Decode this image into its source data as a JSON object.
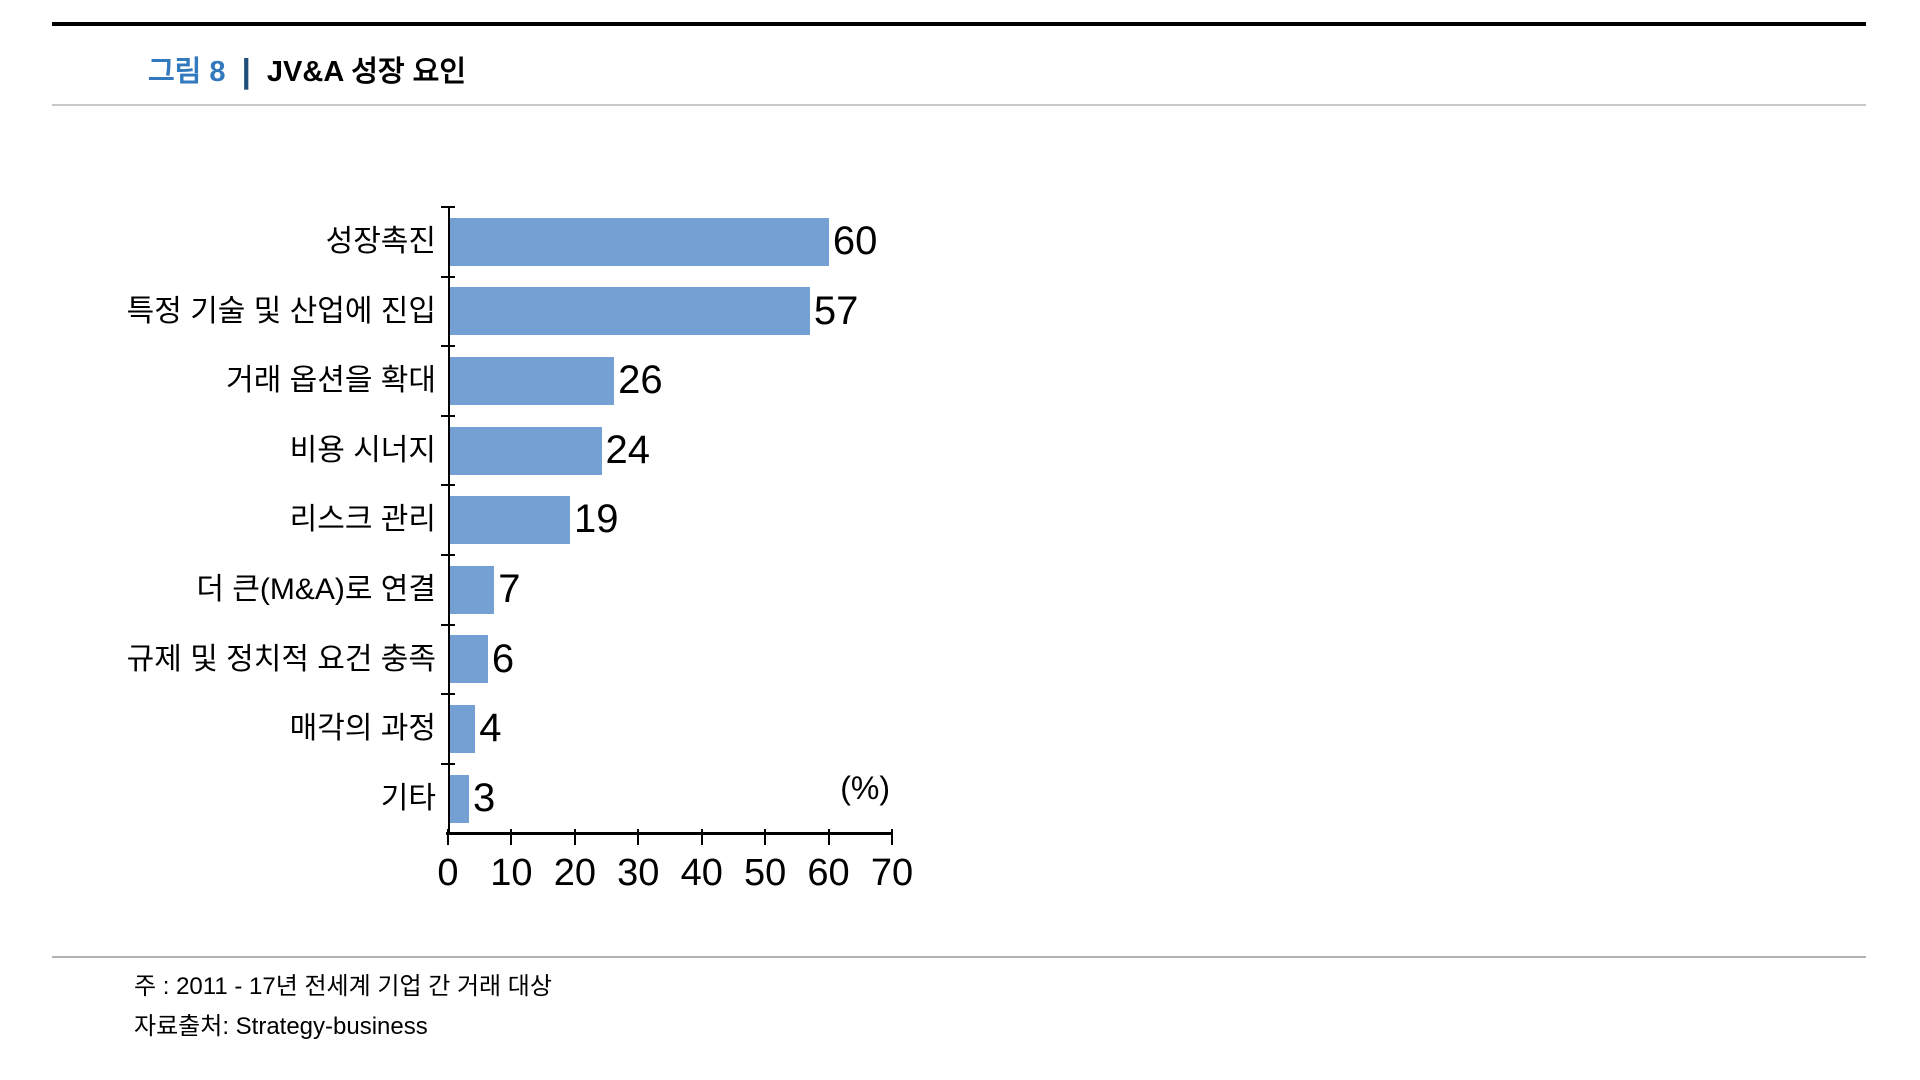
{
  "header": {
    "figure_label": "그림 8",
    "separator": "|",
    "title": "JV&A 성장 요인"
  },
  "chart_data": {
    "type": "bar",
    "orientation": "horizontal",
    "title": "JV&A 성장 요인",
    "unit_label": "(%)",
    "categories": [
      "성장촉진",
      "특정 기술 및 산업에 진입",
      "거래 옵션을 확대",
      "비용 시너지",
      "리스크 관리",
      "더 큰(M&A)로 연결",
      "규제 및 정치적 요건 충족",
      "매각의 과정",
      "기타"
    ],
    "values": [
      60,
      57,
      26,
      24,
      19,
      7,
      6,
      4,
      3
    ],
    "value_labels_shown": true,
    "xlim": [
      0,
      70
    ],
    "x_ticks": [
      0,
      10,
      20,
      30,
      40,
      50,
      60,
      70
    ],
    "grid": false,
    "legend": "none",
    "bar_color": "#74a0d4",
    "axis_color": "#000000"
  },
  "footer": {
    "note": "주 : 2011 - 17년 전세계 기업 간 거래 대상",
    "source": "자료출처: Strategy-business"
  },
  "colors": {
    "figure_label_blue": "#3279be",
    "separator_navy": "#1f4e79",
    "top_rule": "#000000",
    "header_rule": "#c9c9c9",
    "footer_rule": "#b3b3b3"
  }
}
